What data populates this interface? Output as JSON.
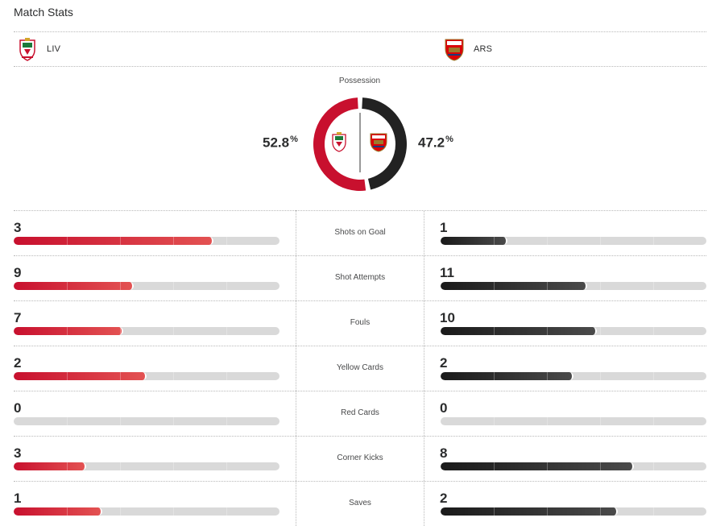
{
  "header": {
    "title": "Match Stats"
  },
  "teams": {
    "home": {
      "abbr": "LIV",
      "color": "#c8102e"
    },
    "away": {
      "abbr": "ARS",
      "color": "#222222"
    }
  },
  "possession": {
    "label": "Possession",
    "home": "52.8",
    "away": "47.2",
    "unit": "%"
  },
  "stats": [
    {
      "label": "Shots on Goal",
      "home": "3",
      "away": "1"
    },
    {
      "label": "Shot Attempts",
      "home": "9",
      "away": "11"
    },
    {
      "label": "Fouls",
      "home": "7",
      "away": "10"
    },
    {
      "label": "Yellow Cards",
      "home": "2",
      "away": "2"
    },
    {
      "label": "Red Cards",
      "home": "0",
      "away": "0"
    },
    {
      "label": "Corner Kicks",
      "home": "3",
      "away": "8"
    },
    {
      "label": "Saves",
      "home": "1",
      "away": "2"
    }
  ]
}
